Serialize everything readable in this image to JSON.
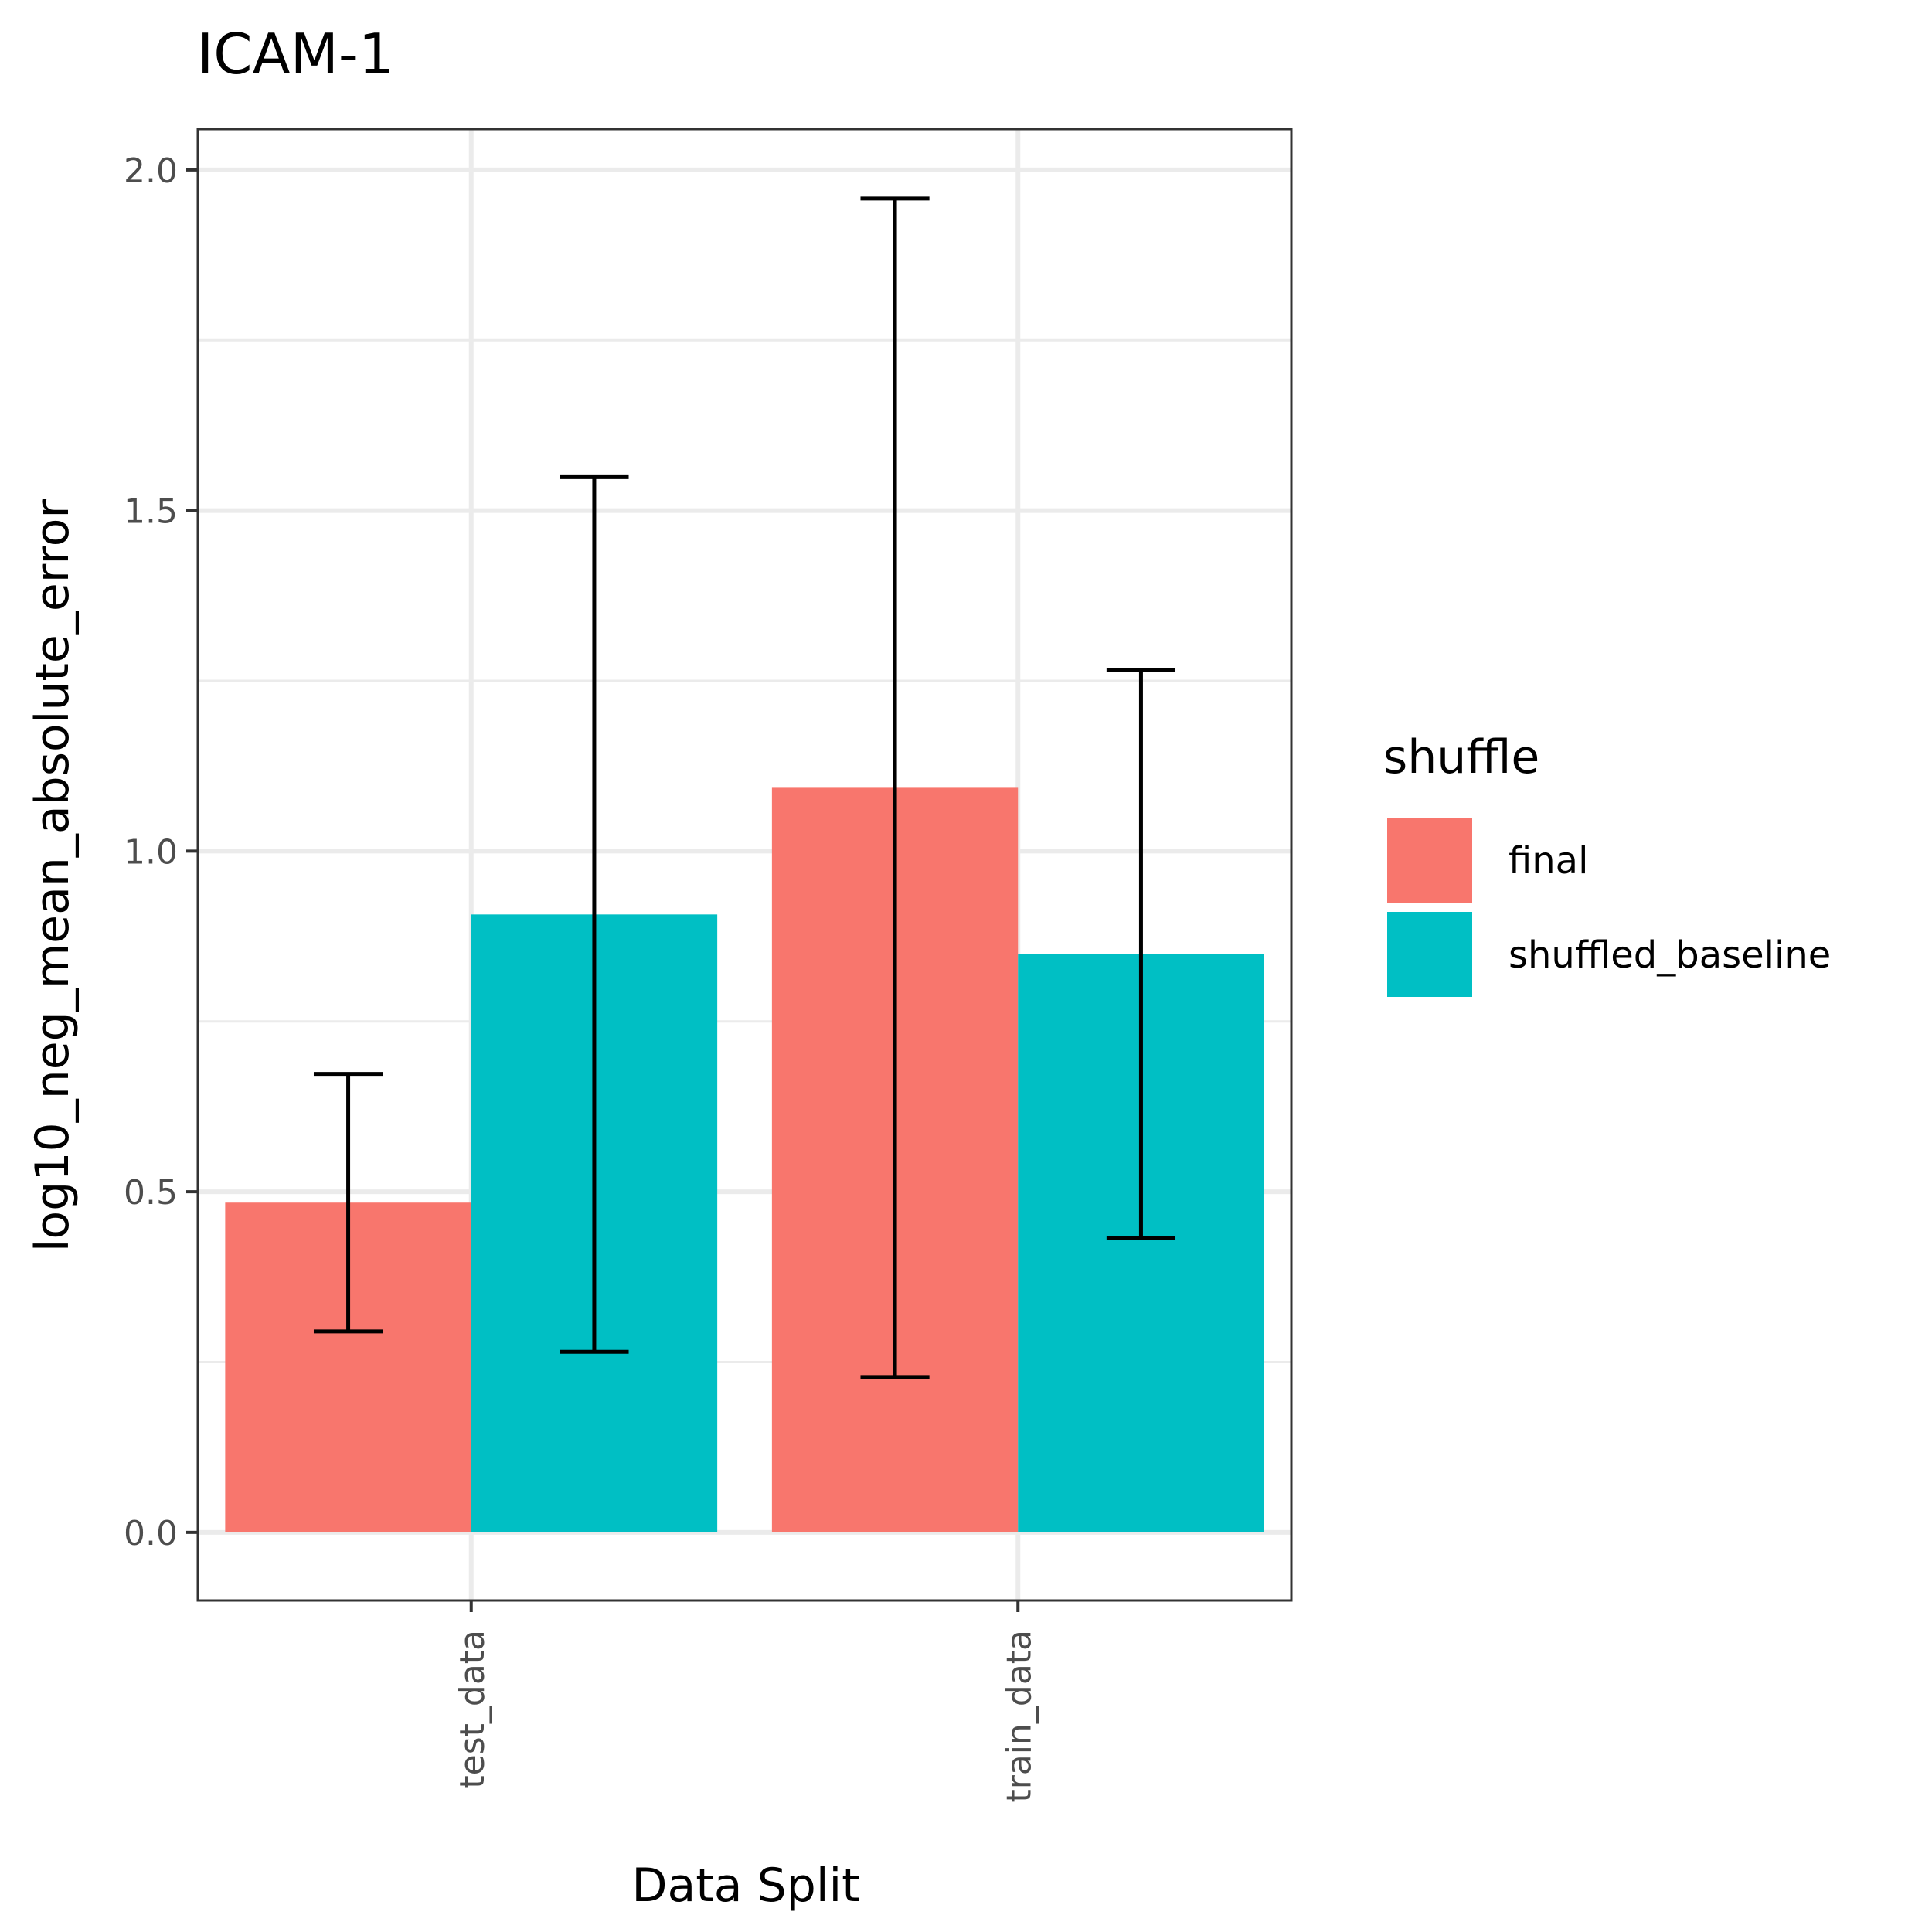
{
  "chart_data": {
    "type": "bar",
    "title": "ICAM-1",
    "xlabel": "Data Split",
    "ylabel": "log10_neg_mean_absolute_error",
    "categories": [
      "test_data",
      "train_data"
    ],
    "series": [
      {
        "name": "final",
        "color": "#F8766D",
        "values": [
          0.484,
          1.093
        ],
        "err_low": [
          0.295,
          0.228
        ],
        "err_high": [
          0.673,
          1.958
        ]
      },
      {
        "name": "shuffled_baseline",
        "color": "#00BFC4",
        "values": [
          0.907,
          0.849
        ],
        "err_low": [
          0.265,
          0.432
        ],
        "err_high": [
          1.549,
          1.266
        ]
      }
    ],
    "ylim": [
      -0.1,
      2.06
    ],
    "yticks": [
      "0.0",
      "0.5",
      "1.0",
      "1.5",
      "2.0"
    ],
    "ytick_values": [
      0,
      0.5,
      1.0,
      1.5,
      2.0
    ],
    "legend_title": "shuffle",
    "legend_position": "right",
    "grid": true
  }
}
